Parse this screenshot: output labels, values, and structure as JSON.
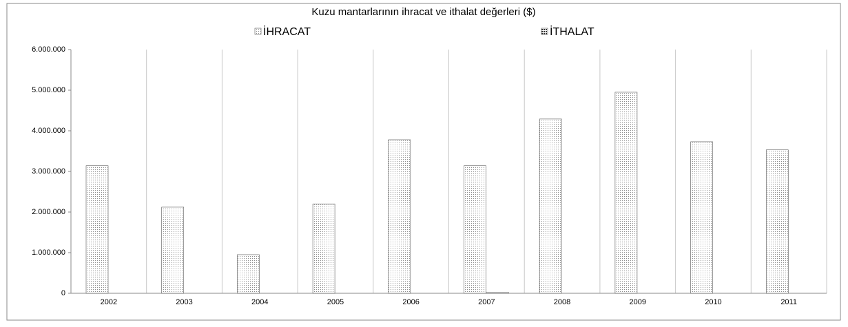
{
  "chart_data": {
    "type": "bar",
    "title": "Kuzu mantarlarının ihracat ve ithalat değerleri ($)",
    "categories": [
      "2002",
      "2003",
      "2004",
      "2005",
      "2006",
      "2007",
      "2008",
      "2009",
      "2010",
      "2011"
    ],
    "series": [
      {
        "name": "İHRACAT",
        "color": "#8c8c8c",
        "values": [
          3140000,
          2120000,
          950000,
          2200000,
          3780000,
          3140000,
          4290000,
          4950000,
          3730000,
          3530000
        ]
      },
      {
        "name": "İTHALAT",
        "color": "#333333",
        "values": [
          0,
          0,
          0,
          0,
          0,
          20000,
          0,
          0,
          0,
          0
        ]
      }
    ],
    "ylim": [
      0,
      6000000
    ],
    "yticks": [
      0,
      {
        "value": 1000000,
        "label": "1.000.000"
      },
      {
        "value": 2000000,
        "label": "2.000.000"
      },
      {
        "value": 3000000,
        "label": "3.000.000"
      },
      {
        "value": 4000000,
        "label": "4.000.000"
      },
      {
        "value": 5000000,
        "label": "5.000.000"
      },
      {
        "value": 6000000,
        "label": "6.000.000"
      }
    ],
    "grid": false,
    "legend": "top"
  }
}
